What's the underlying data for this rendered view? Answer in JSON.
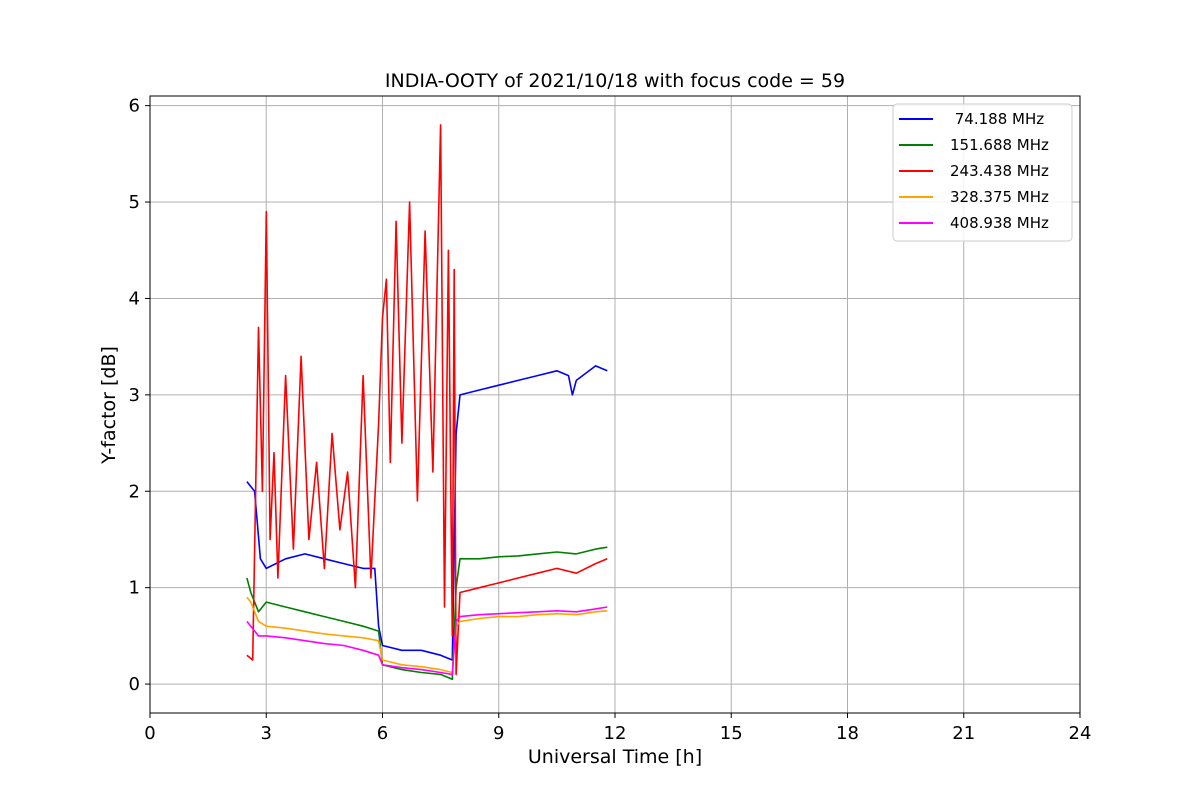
{
  "chart_data": {
    "type": "line",
    "title": "INDIA-OOTY of 2021/10/18 with focus code = 59",
    "xlabel": "Universal Time [h]",
    "ylabel": "Y-factor [dB]",
    "xlim": [
      0,
      24
    ],
    "ylim": [
      -0.3,
      6.1
    ],
    "xticks": [
      0,
      3,
      6,
      9,
      12,
      15,
      18,
      21,
      24
    ],
    "yticks": [
      0,
      1,
      2,
      3,
      4,
      5,
      6
    ],
    "grid": true,
    "legend_position": "top-right",
    "series": [
      {
        "name": " 74.188 MHz",
        "color": "#0000ff",
        "x": [
          2.5,
          2.7,
          2.85,
          3.0,
          3.5,
          4.0,
          4.5,
          5.0,
          5.5,
          5.8,
          5.9,
          6.0,
          6.5,
          7.0,
          7.5,
          7.8,
          7.9,
          8.0,
          8.5,
          9.0,
          9.5,
          10.0,
          10.5,
          10.8,
          10.9,
          11.0,
          11.5,
          11.8
        ],
        "y": [
          2.1,
          2.0,
          1.3,
          1.2,
          1.3,
          1.35,
          1.3,
          1.25,
          1.2,
          1.2,
          0.6,
          0.4,
          0.35,
          0.35,
          0.3,
          0.25,
          2.6,
          3.0,
          3.05,
          3.1,
          3.15,
          3.2,
          3.25,
          3.2,
          3.0,
          3.15,
          3.3,
          3.25
        ]
      },
      {
        "name": "151.688 MHz",
        "color": "#008000",
        "x": [
          2.5,
          2.6,
          2.8,
          3.0,
          3.5,
          4.0,
          4.5,
          5.0,
          5.5,
          5.9,
          6.0,
          6.5,
          7.0,
          7.5,
          7.8,
          7.9,
          8.0,
          8.5,
          9.0,
          9.5,
          10.0,
          10.5,
          11.0,
          11.5,
          11.8
        ],
        "y": [
          1.1,
          0.95,
          0.75,
          0.85,
          0.8,
          0.75,
          0.7,
          0.65,
          0.6,
          0.55,
          0.2,
          0.15,
          0.12,
          0.1,
          0.05,
          1.0,
          1.3,
          1.3,
          1.32,
          1.33,
          1.35,
          1.37,
          1.35,
          1.4,
          1.42
        ]
      },
      {
        "name": "243.438 MHz",
        "color": "#ff0000",
        "x": [
          2.5,
          2.65,
          2.8,
          2.9,
          3.0,
          3.1,
          3.2,
          3.3,
          3.5,
          3.7,
          3.9,
          4.1,
          4.3,
          4.5,
          4.7,
          4.9,
          5.1,
          5.3,
          5.5,
          5.7,
          5.9,
          6.0,
          6.1,
          6.2,
          6.35,
          6.5,
          6.7,
          6.9,
          7.1,
          7.3,
          7.5,
          7.6,
          7.7,
          7.8,
          7.85,
          7.9,
          8.0,
          8.5,
          9.0,
          9.5,
          10.0,
          10.5,
          11.0,
          11.5,
          11.8
        ],
        "y": [
          0.3,
          0.25,
          3.7,
          2.0,
          4.9,
          1.5,
          2.4,
          1.1,
          3.2,
          1.4,
          3.4,
          1.5,
          2.3,
          1.2,
          2.6,
          1.6,
          2.2,
          1.0,
          3.2,
          1.1,
          2.7,
          3.8,
          4.2,
          2.3,
          4.8,
          2.5,
          5.0,
          1.9,
          4.7,
          2.2,
          5.8,
          0.8,
          4.5,
          0.5,
          4.3,
          0.1,
          0.95,
          1.0,
          1.05,
          1.1,
          1.15,
          1.2,
          1.15,
          1.25,
          1.3
        ]
      },
      {
        "name": "328.375 MHz",
        "color": "#ffa500",
        "x": [
          2.5,
          2.6,
          2.8,
          3.0,
          3.5,
          4.0,
          4.5,
          5.0,
          5.5,
          5.9,
          6.0,
          6.5,
          7.0,
          7.5,
          7.8,
          7.9,
          8.0,
          8.5,
          9.0,
          9.5,
          10.0,
          10.5,
          11.0,
          11.5,
          11.8
        ],
        "y": [
          0.9,
          0.85,
          0.65,
          0.6,
          0.58,
          0.55,
          0.52,
          0.5,
          0.48,
          0.45,
          0.25,
          0.2,
          0.18,
          0.15,
          0.12,
          0.6,
          0.65,
          0.68,
          0.7,
          0.7,
          0.72,
          0.73,
          0.72,
          0.75,
          0.76
        ]
      },
      {
        "name": "408.938 MHz",
        "color": "#ff00ff",
        "x": [
          2.5,
          2.6,
          2.8,
          3.0,
          3.5,
          4.0,
          4.5,
          5.0,
          5.5,
          5.9,
          6.0,
          6.5,
          7.0,
          7.5,
          7.8,
          7.9,
          8.0,
          8.5,
          9.0,
          9.5,
          10.0,
          10.5,
          11.0,
          11.5,
          11.8
        ],
        "y": [
          0.65,
          0.6,
          0.5,
          0.5,
          0.48,
          0.45,
          0.42,
          0.4,
          0.35,
          0.3,
          0.2,
          0.17,
          0.15,
          0.12,
          0.1,
          0.65,
          0.7,
          0.72,
          0.73,
          0.74,
          0.75,
          0.76,
          0.75,
          0.78,
          0.8
        ]
      }
    ]
  }
}
